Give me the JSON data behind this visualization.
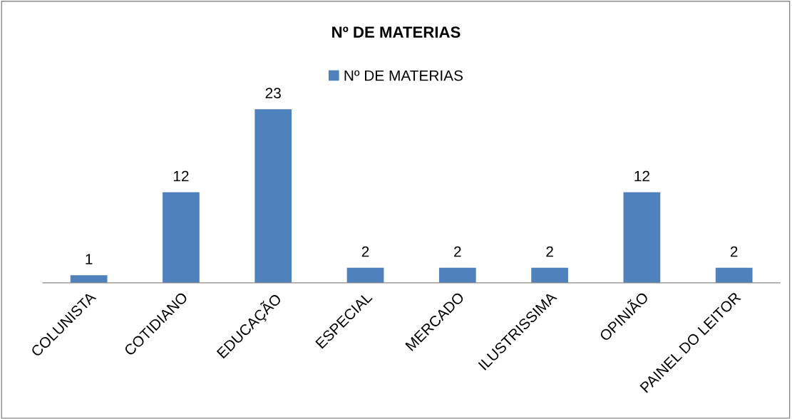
{
  "chart_data": {
    "type": "bar",
    "title": "Nº DE MATERIAS",
    "categories": [
      "COLUNISTA",
      "COTIDIANO",
      "EDUCAÇÃO",
      "ESPECIAL",
      "MERCADO",
      "ILUSTRISSIMA",
      "OPINIÃO",
      "PAINEL DO LEITOR"
    ],
    "series": [
      {
        "name": "Nº DE MATERIAS",
        "color": "#4f81bd",
        "values": [
          1,
          12,
          23,
          2,
          2,
          2,
          12,
          2
        ]
      }
    ],
    "data_labels": true,
    "legend": "top",
    "grid": false
  }
}
